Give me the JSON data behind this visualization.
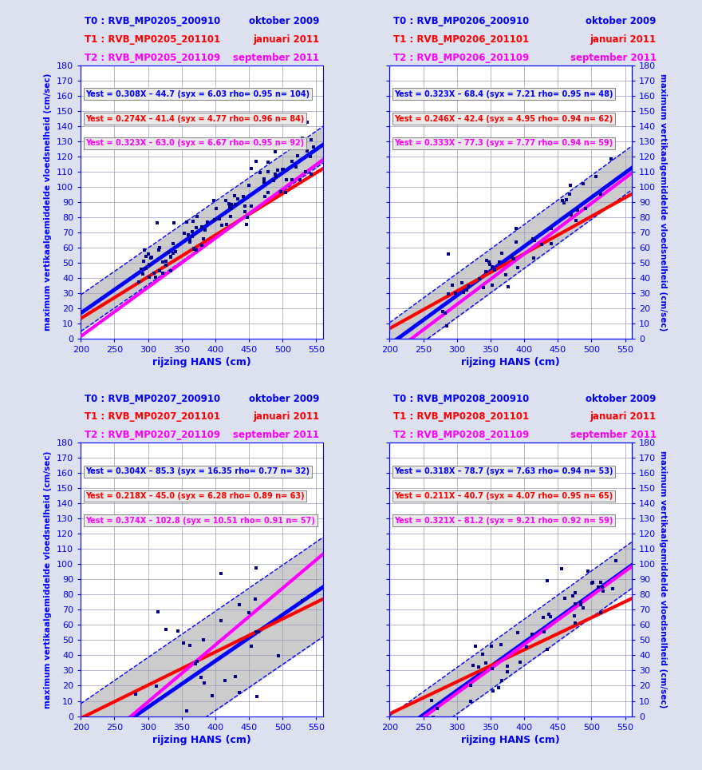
{
  "panels": [
    {
      "title_left": [
        "T0 : RVB_MP0205_200910",
        "T1 : RVB_MP0205_201101",
        "T2 : RVB_MP0205_201109"
      ],
      "title_right": [
        "oktober 2009",
        "januari 2011",
        "september 2011"
      ],
      "title_colors": [
        "blue",
        "red",
        "magenta"
      ],
      "equations": [
        "Yest = 0.308X – 44.7 (syx = 6.03 rho= 0.95 n= 104)",
        "Yest = 0.274X – 41.4 (syx = 4.77 rho= 0.96 n= 84)",
        "Yest = 0.323X – 63.0 (syx = 6.67 rho= 0.95 n= 92)"
      ],
      "eq_colors": [
        "blue",
        "red",
        "magenta"
      ],
      "slopes": [
        0.308,
        0.274,
        0.323
      ],
      "intercepts": [
        -44.7,
        -41.4,
        -63.0
      ],
      "syx": [
        6.03,
        4.77,
        6.67
      ],
      "xlim": [
        200,
        560
      ],
      "ylim": [
        0,
        180
      ],
      "left_ylabel": true,
      "right_ylabel": false,
      "scatter_xmin": 285,
      "scatter_xmax": 550,
      "scatter_n": 104,
      "seed": 42
    },
    {
      "title_left": [
        "T0 : RVB_MP0206_200910",
        "T1 : RVB_MP0206_201101",
        "T2 : RVB_MP0206_201109"
      ],
      "title_right": [
        "oktober 2009",
        "januari 2011",
        "september 2011"
      ],
      "title_colors": [
        "blue",
        "red",
        "magenta"
      ],
      "equations": [
        "Yest = 0.323X – 68.4 (syx = 7.21 rho= 0.95 n= 48)",
        "Yest = 0.246X – 42.4 (syx = 4.95 rho= 0.94 n= 62)",
        "Yest = 0.333X – 77.3 (syx = 7.77 rho= 0.94 n= 59)"
      ],
      "eq_colors": [
        "blue",
        "red",
        "magenta"
      ],
      "slopes": [
        0.323,
        0.246,
        0.333
      ],
      "intercepts": [
        -68.4,
        -42.4,
        -77.3
      ],
      "syx": [
        7.21,
        4.95,
        7.77
      ],
      "xlim": [
        200,
        560
      ],
      "ylim": [
        0,
        180
      ],
      "left_ylabel": false,
      "right_ylabel": true,
      "scatter_xmin": 270,
      "scatter_xmax": 535,
      "scatter_n": 48,
      "seed": 77
    },
    {
      "title_left": [
        "T0 : RVB_MP0207_200910",
        "T1 : RVB_MP0207_201101",
        "T2 : RVB_MP0207_201109"
      ],
      "title_right": [
        "oktober 2009",
        "januari 2011",
        "september 2011"
      ],
      "title_colors": [
        "blue",
        "red",
        "magenta"
      ],
      "equations": [
        "Yest = 0.304X – 85.3 (syx = 16.35 rho= 0.77 n= 32)",
        "Yest = 0.218X – 45.0 (syx = 6.28 rho= 0.89 n= 63)",
        "Yest = 0.374X – 102.8 (syx = 10.51 rho= 0.91 n= 57)"
      ],
      "eq_colors": [
        "blue",
        "red",
        "magenta"
      ],
      "slopes": [
        0.304,
        0.218,
        0.374
      ],
      "intercepts": [
        -85.3,
        -45.0,
        -102.8
      ],
      "syx": [
        16.35,
        6.28,
        10.51
      ],
      "xlim": [
        200,
        560
      ],
      "ylim": [
        0,
        180
      ],
      "left_ylabel": true,
      "right_ylabel": false,
      "scatter_xmin": 265,
      "scatter_xmax": 535,
      "scatter_n": 32,
      "seed": 123
    },
    {
      "title_left": [
        "T0 : RVB_MP0208_200910",
        "T1 : RVB_MP0208_201101",
        "T2 : RVB_MP0208_201109"
      ],
      "title_right": [
        "oktober 2009",
        "januari 2011",
        "september 2011"
      ],
      "title_colors": [
        "blue",
        "red",
        "magenta"
      ],
      "equations": [
        "Yest = 0.318X – 78.7 (syx = 7.63 rho= 0.94 n= 53)",
        "Yest = 0.211X – 40.7 (syx = 4.07 rho= 0.95 n= 65)",
        "Yest = 0.321X – 81.2 (syx = 9.21 rho= 0.92 n= 59)"
      ],
      "eq_colors": [
        "blue",
        "red",
        "magenta"
      ],
      "slopes": [
        0.318,
        0.211,
        0.321
      ],
      "intercepts": [
        -78.7,
        -40.7,
        -81.2
      ],
      "syx": [
        7.63,
        4.07,
        9.21
      ],
      "xlim": [
        200,
        560
      ],
      "ylim": [
        0,
        180
      ],
      "left_ylabel": false,
      "right_ylabel": true,
      "scatter_xmin": 250,
      "scatter_xmax": 540,
      "scatter_n": 53,
      "seed": 55
    }
  ],
  "xlabel": "rijzing HANS (cm)",
  "left_ylabel": "maximum vertikaalgemiddelde vloedsnelheid (cm/sec)",
  "right_ylabel": "maximum vertikaalgemiddelde vloedsnelheid (cm/sec)",
  "bg_color": "#dde0ef",
  "plot_bg": "white",
  "grid_color": "#9999bb",
  "scatter_color": "#00008B",
  "conf_band_color": "#cccccc",
  "conf_line_color": "blue",
  "title_fontsize": 8.5,
  "eq_fontsize": 7.0,
  "tick_fontsize": 8,
  "xlabel_fontsize": 9,
  "ylabel_fontsize": 7.5
}
